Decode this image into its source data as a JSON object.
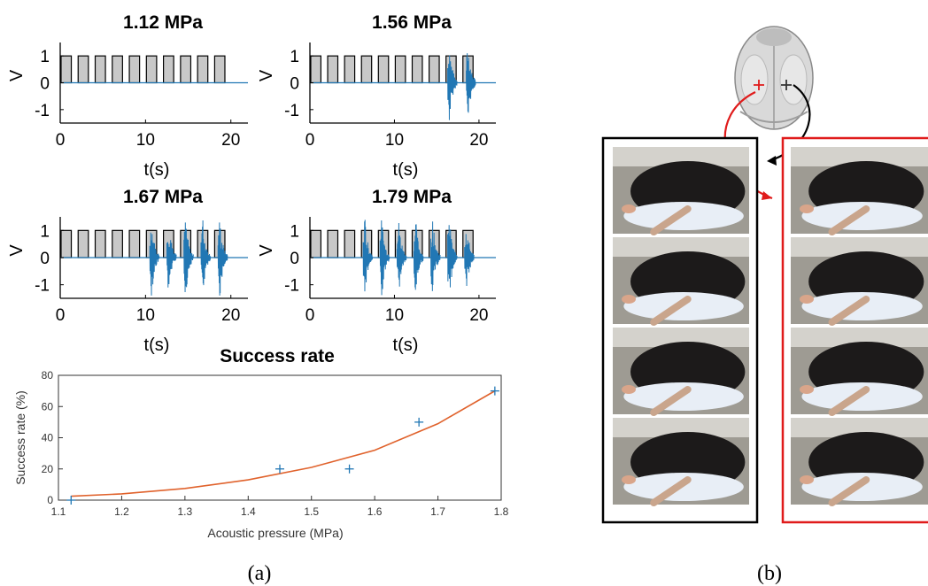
{
  "chart_data": [
    {
      "type": "line",
      "title": "1.12 MPa",
      "xlabel": "t(s)",
      "ylabel": "V",
      "xlim": [
        0,
        22
      ],
      "ylim": [
        -1.5,
        1.5
      ],
      "xticks": [
        0,
        10,
        20
      ],
      "yticks": [
        -1,
        0,
        1
      ],
      "pulses": {
        "count": 10,
        "period_s": 2,
        "width_s": 1.2,
        "start_s": 0.1,
        "amplitude": 1
      },
      "response_bursts_s": []
    },
    {
      "type": "line",
      "title": "1.56 MPa",
      "xlabel": "t(s)",
      "ylabel": "V",
      "xlim": [
        0,
        22
      ],
      "ylim": [
        -1.5,
        1.5
      ],
      "xticks": [
        0,
        10,
        20
      ],
      "yticks": [
        -1,
        0,
        1
      ],
      "pulses": {
        "count": 10,
        "period_s": 2,
        "width_s": 1.2,
        "start_s": 0.1,
        "amplitude": 1
      },
      "response_bursts_s": [
        16.5,
        18.7
      ]
    },
    {
      "type": "line",
      "title": "1.67 MPa",
      "xlabel": "t(s)",
      "ylabel": "V",
      "xlim": [
        0,
        22
      ],
      "ylim": [
        -1.5,
        1.5
      ],
      "xticks": [
        0,
        10,
        20
      ],
      "yticks": [
        -1,
        0,
        1
      ],
      "pulses": {
        "count": 10,
        "period_s": 2,
        "width_s": 1.2,
        "start_s": 0.1,
        "amplitude": 1
      },
      "response_bursts_s": [
        10.7,
        12.7,
        14.7,
        16.7,
        18.7
      ]
    },
    {
      "type": "line",
      "title": "1.79 MPa",
      "xlabel": "t(s)",
      "ylabel": "V",
      "xlim": [
        0,
        22
      ],
      "ylim": [
        -1.5,
        1.5
      ],
      "xticks": [
        0,
        10,
        20
      ],
      "yticks": [
        -1,
        0,
        1
      ],
      "pulses": {
        "count": 10,
        "period_s": 2,
        "width_s": 1.2,
        "start_s": 0.1,
        "amplitude": 1
      },
      "response_bursts_s": [
        6.5,
        8.5,
        10.5,
        12.5,
        14.5,
        16.5,
        18.5
      ]
    },
    {
      "type": "scatter",
      "title": "Success rate",
      "xlabel": "Acoustic pressure (MPa)",
      "ylabel": "Success rate (%)",
      "xlim": [
        1.1,
        1.8
      ],
      "ylim": [
        0,
        80
      ],
      "xticks": [
        1.1,
        1.2,
        1.3,
        1.4,
        1.5,
        1.6,
        1.7,
        1.8
      ],
      "yticks": [
        0,
        20,
        40,
        60,
        80
      ],
      "points": {
        "x": [
          1.12,
          1.45,
          1.56,
          1.67,
          1.79
        ],
        "y": [
          0,
          20,
          20,
          50,
          70
        ]
      },
      "fit_curve": {
        "x": [
          1.12,
          1.2,
          1.3,
          1.4,
          1.5,
          1.6,
          1.7,
          1.79
        ],
        "y": [
          2.5,
          4,
          7.5,
          13,
          21,
          32,
          49,
          70
        ]
      }
    }
  ],
  "panel_labels": {
    "a": "(a)",
    "b": "(b)"
  },
  "colors": {
    "signal": "#2177b4",
    "fit_curve": "#e0622c",
    "marker": "#2177b4",
    "pulse_fill": "#c8c8c8",
    "left_frame": "#000000",
    "right_frame": "#e01b1b",
    "arrow_red": "#e01b1b",
    "arrow_black": "#000000"
  },
  "photo_panels": {
    "frames": 4,
    "description_icon": "mouse-photo-icon",
    "brain_icon": "mouse-brain-icon"
  }
}
